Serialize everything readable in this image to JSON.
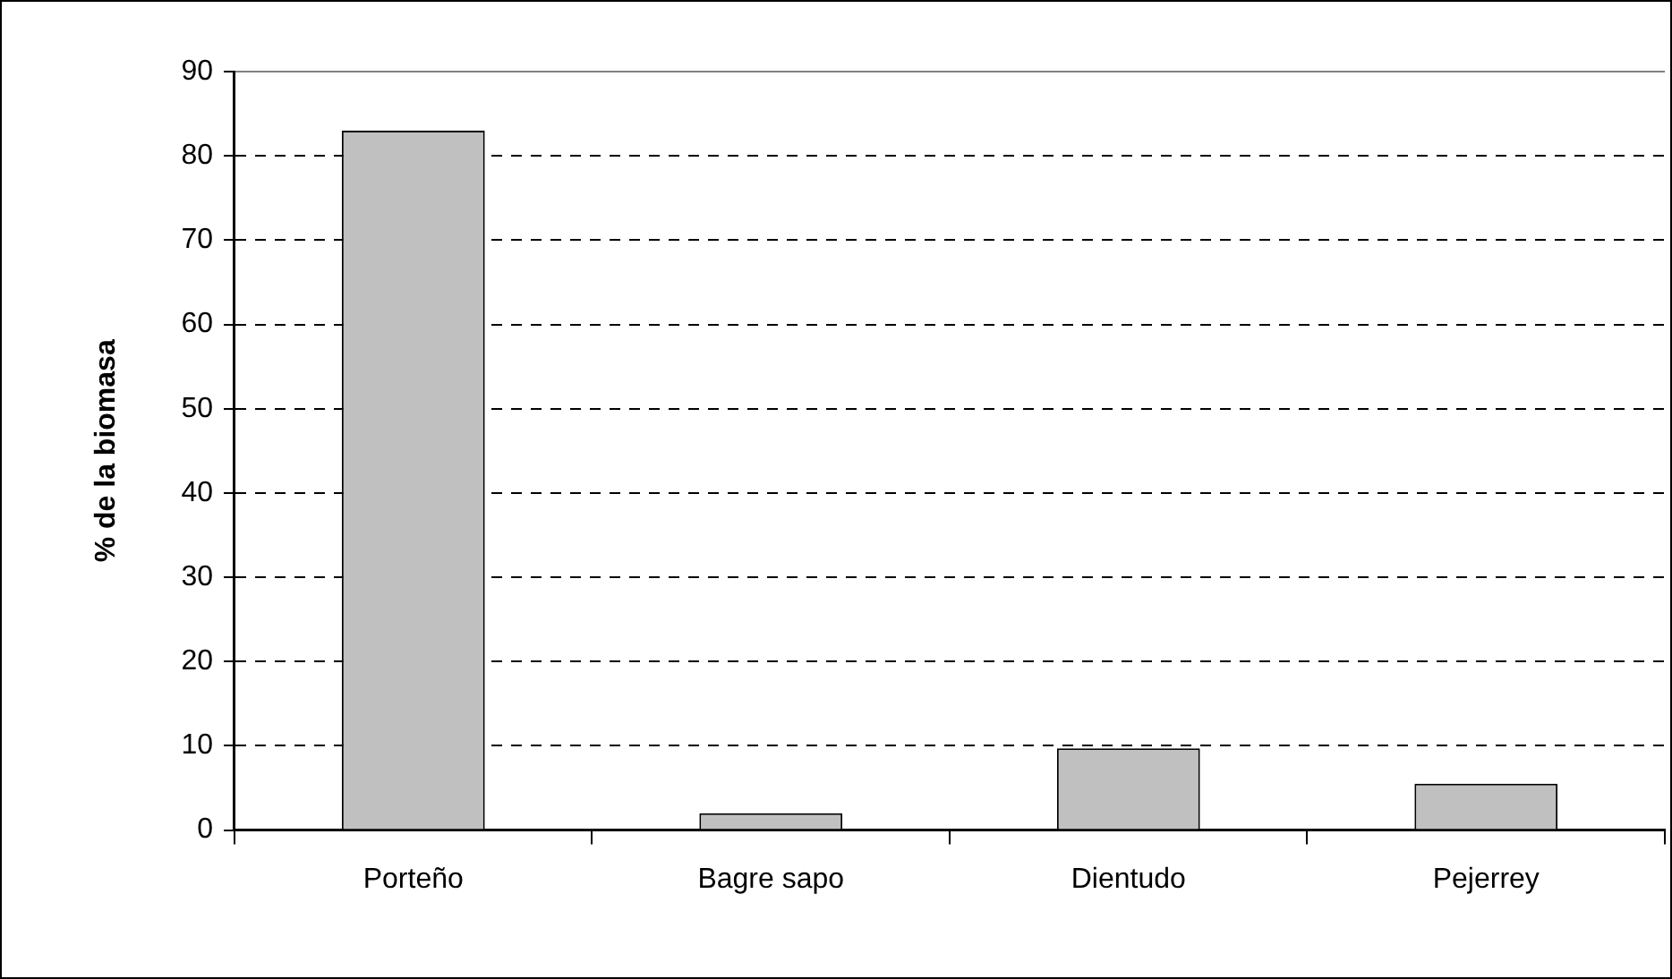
{
  "chart_data": {
    "type": "bar",
    "ylabel": "% de la biomasa",
    "categories": [
      "Porteño",
      "Bagre sapo",
      "Dientudo",
      "Pejerrey"
    ],
    "values": [
      83,
      2,
      9.7,
      5.5
    ],
    "color": "#c0c0c0",
    "ylim": [
      0,
      90
    ],
    "yticks": [
      0,
      10,
      20,
      30,
      40,
      50,
      60,
      70,
      80,
      90
    ],
    "grid": "y",
    "legend": false
  }
}
